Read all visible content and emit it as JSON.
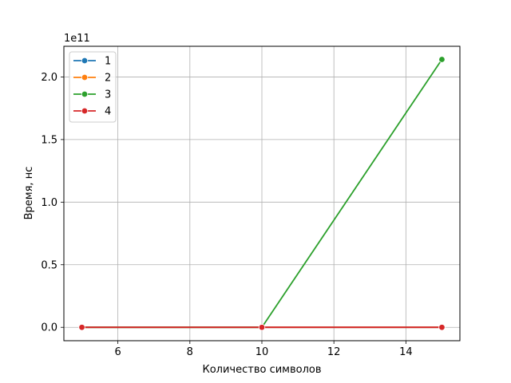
{
  "chart_data": {
    "type": "line",
    "title": "",
    "xlabel": "Количество символов",
    "ylabel": "Время, нс",
    "y_multiplier_label": "1e11",
    "y_scale_factor": 100000000000,
    "xlim": [
      4.5,
      15.5
    ],
    "ylim": [
      -10700000000,
      224500000000
    ],
    "x_ticks": [
      6,
      8,
      10,
      12,
      14
    ],
    "x_tick_labels": [
      "6",
      "8",
      "10",
      "12",
      "14"
    ],
    "y_ticks": [
      0,
      50000000000,
      100000000000,
      150000000000,
      200000000000
    ],
    "y_tick_labels": [
      "0.0",
      "0.5",
      "1.0",
      "1.5",
      "2.0"
    ],
    "grid": true,
    "legend_position": "upper-left",
    "marker": "circle",
    "series": [
      {
        "name": "1",
        "color": "#1f77b4",
        "x": [
          5,
          10,
          15
        ],
        "y": [
          0,
          0,
          0
        ]
      },
      {
        "name": "2",
        "color": "#ff7f0e",
        "x": [
          5,
          10,
          15
        ],
        "y": [
          0,
          0,
          0
        ]
      },
      {
        "name": "3",
        "color": "#2ca02c",
        "x": [
          5,
          10,
          15
        ],
        "y": [
          0,
          0,
          214000000000
        ]
      },
      {
        "name": "4",
        "color": "#d62728",
        "x": [
          5,
          10,
          15
        ],
        "y": [
          0,
          0,
          0
        ]
      }
    ]
  }
}
